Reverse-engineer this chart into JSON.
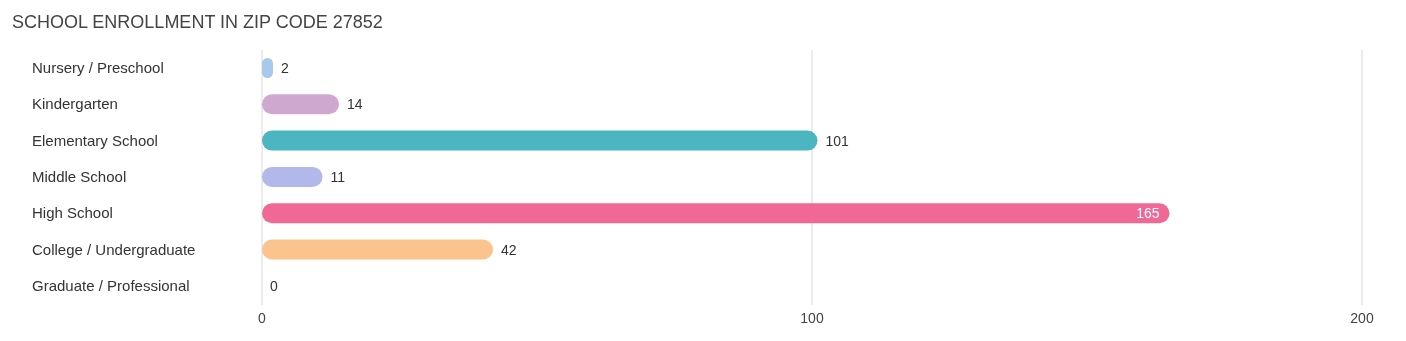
{
  "chart_data": {
    "type": "bar",
    "orientation": "horizontal",
    "title": "SCHOOL ENROLLMENT IN ZIP CODE 27852",
    "categories": [
      "Nursery / Preschool",
      "Kindergarten",
      "Elementary School",
      "Middle School",
      "High School",
      "College / Undergraduate",
      "Graduate / Professional"
    ],
    "values": [
      2,
      14,
      101,
      11,
      165,
      42,
      0
    ],
    "colors": [
      "#a8c8ec",
      "#cfa8d0",
      "#4bb5c1",
      "#b3b8ea",
      "#f06895",
      "#fbc48e",
      "#f1b0b0"
    ],
    "xlim": [
      0,
      200
    ],
    "xticks": [
      0,
      100,
      200
    ],
    "grid": "x",
    "data_labels": true
  }
}
